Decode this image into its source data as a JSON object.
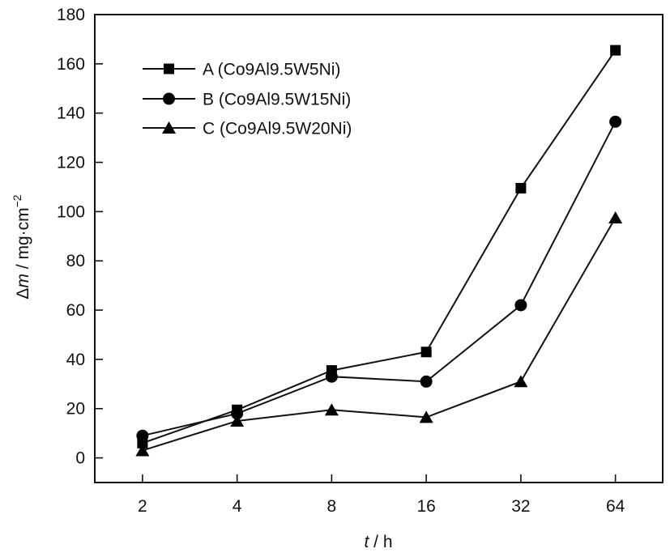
{
  "chart_data": {
    "type": "line",
    "title": "",
    "xlabel_var": "t",
    "xlabel_unit": " / h",
    "ylabel_var": "m",
    "ylabel_delta": "Δ",
    "ylabel_unit": " / mg·cm",
    "ylabel_exp": "−2",
    "x_scale": "log2",
    "x": [
      2,
      4,
      8,
      16,
      32,
      64
    ],
    "x_tick_labels": [
      "2",
      "4",
      "8",
      "16",
      "32",
      "64"
    ],
    "xlim": [
      1.41,
      90.5
    ],
    "ylim": [
      -10,
      180
    ],
    "y_ticks": [
      0,
      20,
      40,
      60,
      80,
      100,
      120,
      140,
      160,
      180
    ],
    "y_tick_labels": [
      "0",
      "20",
      "40",
      "60",
      "80",
      "100",
      "120",
      "140",
      "160",
      "180"
    ],
    "grid": false,
    "legend_position": "top-left",
    "series": [
      {
        "name": "A (Co9Al9.5W5Ni)",
        "marker": "square",
        "values": [
          6,
          19.5,
          35.5,
          43,
          109.5,
          165.5
        ]
      },
      {
        "name": "B (Co9Al9.5W15Ni)",
        "marker": "circle",
        "values": [
          9,
          18,
          33,
          31,
          62,
          136.5
        ]
      },
      {
        "name": "C (Co9Al9.5W20Ni)",
        "marker": "triangle",
        "values": [
          3,
          15,
          19.5,
          16.5,
          31,
          97.5
        ]
      }
    ]
  }
}
